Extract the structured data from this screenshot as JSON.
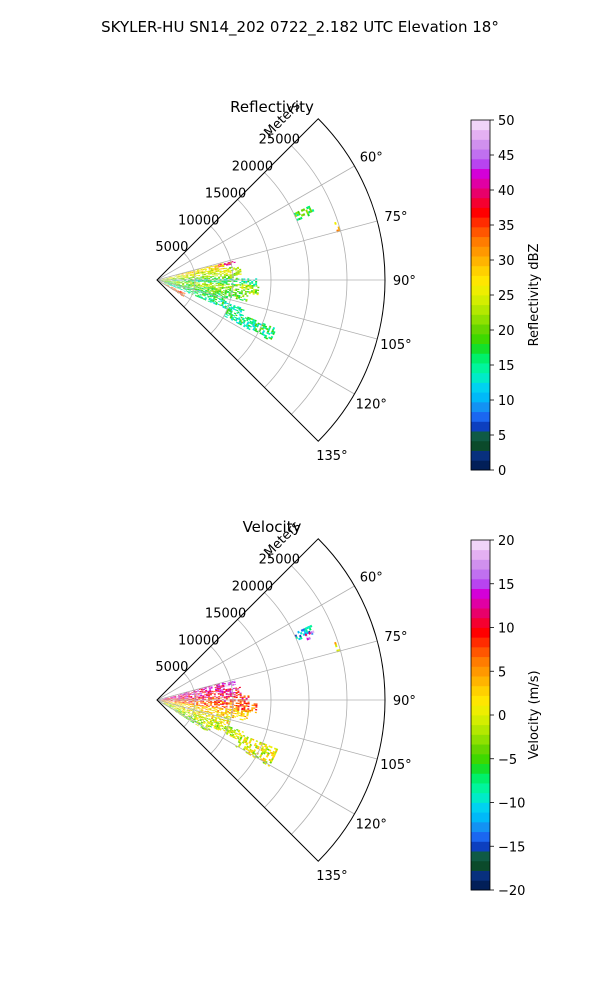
{
  "figure": {
    "suptitle": "SKYLER-HU  SN14_202  0722_2.182 UTC Elevation 18°"
  },
  "chart_data": [
    {
      "type": "heatmap",
      "projection": "polar-sector",
      "title": "Reflectivity",
      "range_label": "Meters",
      "range_ticks": [
        5000,
        10000,
        15000,
        20000,
        25000
      ],
      "range_tick_labels": [
        "5000",
        "10000",
        "15000",
        "20000",
        "25000"
      ],
      "rmax": 30000,
      "angle_ticks_deg": [
        60,
        75,
        90,
        105,
        120,
        135
      ],
      "angle_tick_labels": [
        "60°",
        "75°",
        "90°",
        "105°",
        "120°",
        "135°"
      ],
      "sector_deg": [
        45,
        135
      ],
      "grid": true,
      "colorbar": {
        "label": "Reflectivity dBZ",
        "vmin": 0,
        "vmax": 50,
        "ticks": [
          0,
          5,
          10,
          15,
          20,
          25,
          30,
          35,
          40,
          45,
          50
        ],
        "tick_labels": [
          "0",
          "5",
          "10",
          "15",
          "20",
          "25",
          "30",
          "35",
          "40",
          "45",
          "50"
        ],
        "colors": [
          "#021f58",
          "#08307e",
          "#0b4a2b",
          "#0f5a45",
          "#0d3fbf",
          "#1b67f0",
          "#1392f3",
          "#00b9f8",
          "#00d2f0",
          "#00ebc8",
          "#00f59c",
          "#00f06a",
          "#14e02a",
          "#3ed800",
          "#66d600",
          "#8fe000",
          "#b4e800",
          "#d4ee00",
          "#eeee00",
          "#ffe600",
          "#ffd000",
          "#ffb400",
          "#ff9800",
          "#ff7c00",
          "#ff5600",
          "#ff2c00",
          "#ff0000",
          "#f50030",
          "#e8006a",
          "#e000a4",
          "#d400d8",
          "#b844f0",
          "#c070f0",
          "#d090ee",
          "#e4b0f2",
          "#f0d4f8"
        ]
      },
      "echo_regions": [
        {
          "az": [
            64,
            67
          ],
          "r": [
            20000,
            22500
          ],
          "value": 18
        },
        {
          "az": [
            72,
            74.5
          ],
          "r": [
            24500,
            25000
          ],
          "value": 30
        },
        {
          "az": [
            76,
            78
          ],
          "r": [
            8000,
            10500
          ],
          "value": 38
        },
        {
          "az": [
            75,
            80
          ],
          "r": [
            1500,
            9000
          ],
          "value": 27
        },
        {
          "az": [
            80,
            86
          ],
          "r": [
            500,
            11000
          ],
          "value": 24
        },
        {
          "az": [
            86,
            89
          ],
          "r": [
            500,
            10500
          ],
          "value": 20
        },
        {
          "az": [
            89,
            93
          ],
          "r": [
            2000,
            13000
          ],
          "value": 16
        },
        {
          "az": [
            93,
            98
          ],
          "r": [
            500,
            13500
          ],
          "value": 22
        },
        {
          "az": [
            98,
            103
          ],
          "r": [
            500,
            12000
          ],
          "value": 19
        },
        {
          "az": [
            103,
            108
          ],
          "r": [
            500,
            9500
          ],
          "value": 17
        },
        {
          "az": [
            108,
            112
          ],
          "r": [
            1000,
            12000
          ],
          "value": 15
        },
        {
          "az": [
            112,
            118
          ],
          "r": [
            10000,
            17000
          ],
          "value": 16
        },
        {
          "az": [
            115,
            122
          ],
          "r": [
            500,
            4000
          ],
          "value": 34
        }
      ]
    },
    {
      "type": "heatmap",
      "projection": "polar-sector",
      "title": "Velocity",
      "range_label": "Meters",
      "range_ticks": [
        5000,
        10000,
        15000,
        20000,
        25000
      ],
      "range_tick_labels": [
        "5000",
        "10000",
        "15000",
        "20000",
        "25000"
      ],
      "rmax": 30000,
      "angle_ticks_deg": [
        60,
        75,
        90,
        105,
        120,
        135
      ],
      "angle_tick_labels": [
        "60°",
        "75°",
        "90°",
        "105°",
        "120°",
        "135°"
      ],
      "sector_deg": [
        45,
        135
      ],
      "grid": true,
      "colorbar": {
        "label": "Velocity (m/s)",
        "vmin": -20,
        "vmax": 20,
        "ticks": [
          -20,
          -15,
          -10,
          -5,
          0,
          5,
          10,
          15,
          20
        ],
        "tick_labels": [
          "−20",
          "−15",
          "−10",
          "−5",
          "0",
          "5",
          "10",
          "15",
          "20"
        ],
        "colors": [
          "#021f58",
          "#08307e",
          "#0b4a2b",
          "#0f5a45",
          "#0d3fbf",
          "#1b67f0",
          "#1392f3",
          "#00b9f8",
          "#00d2f0",
          "#00ebc8",
          "#00f59c",
          "#00f06a",
          "#14e02a",
          "#3ed800",
          "#66d600",
          "#8fe000",
          "#b4e800",
          "#d4ee00",
          "#eeee00",
          "#ffe600",
          "#ffd000",
          "#ffb400",
          "#ff9800",
          "#ff7c00",
          "#ff5600",
          "#ff2c00",
          "#ff0000",
          "#f50030",
          "#e8006a",
          "#e000a4",
          "#d400d8",
          "#b844f0",
          "#c070f0",
          "#d090ee",
          "#e4b0f2",
          "#f0d4f8"
        ]
      },
      "echo_regions": [
        {
          "az": [
            64,
            67
          ],
          "r": [
            20000,
            22500
          ],
          "value": -11
        },
        {
          "az": [
            66,
            68
          ],
          "r": [
            21000,
            22500
          ],
          "value": 15
        },
        {
          "az": [
            72,
            74.5
          ],
          "r": [
            24500,
            25000
          ],
          "value": 3
        },
        {
          "az": [
            76,
            79
          ],
          "r": [
            8000,
            10500
          ],
          "value": 16
        },
        {
          "az": [
            75,
            81
          ],
          "r": [
            1000,
            9000
          ],
          "value": 13
        },
        {
          "az": [
            81,
            87
          ],
          "r": [
            500,
            11000
          ],
          "value": 11
        },
        {
          "az": [
            87,
            92
          ],
          "r": [
            1000,
            12000
          ],
          "value": 9
        },
        {
          "az": [
            92,
            97
          ],
          "r": [
            500,
            13000
          ],
          "value": 7
        },
        {
          "az": [
            97,
            103
          ],
          "r": [
            500,
            12000
          ],
          "value": 3
        },
        {
          "az": [
            103,
            110
          ],
          "r": [
            500,
            10000
          ],
          "value": 1
        },
        {
          "az": [
            110,
            116
          ],
          "r": [
            1000,
            12000
          ],
          "value": -1
        },
        {
          "az": [
            116,
            122
          ],
          "r": [
            500,
            8000
          ],
          "value": -3
        },
        {
          "az": [
            112,
            120
          ],
          "r": [
            12000,
            17000
          ],
          "value": 0
        }
      ]
    }
  ]
}
